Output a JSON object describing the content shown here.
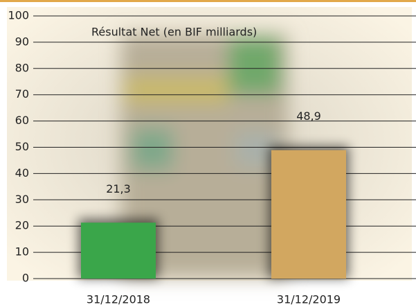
{
  "chart_data": {
    "type": "bar",
    "title": "Résultat Net (en BIF milliards)",
    "categories": [
      "31/12/2018",
      "31/12/2019"
    ],
    "values": [
      21.3,
      48.9
    ],
    "value_labels": [
      "21,3",
      "48,9"
    ],
    "colors": [
      "#3aa64a",
      "#d2a760"
    ],
    "ylim": [
      0,
      100
    ],
    "yticks": [
      0,
      10,
      20,
      30,
      40,
      50,
      60,
      70,
      80,
      90,
      100
    ],
    "grid": true
  }
}
